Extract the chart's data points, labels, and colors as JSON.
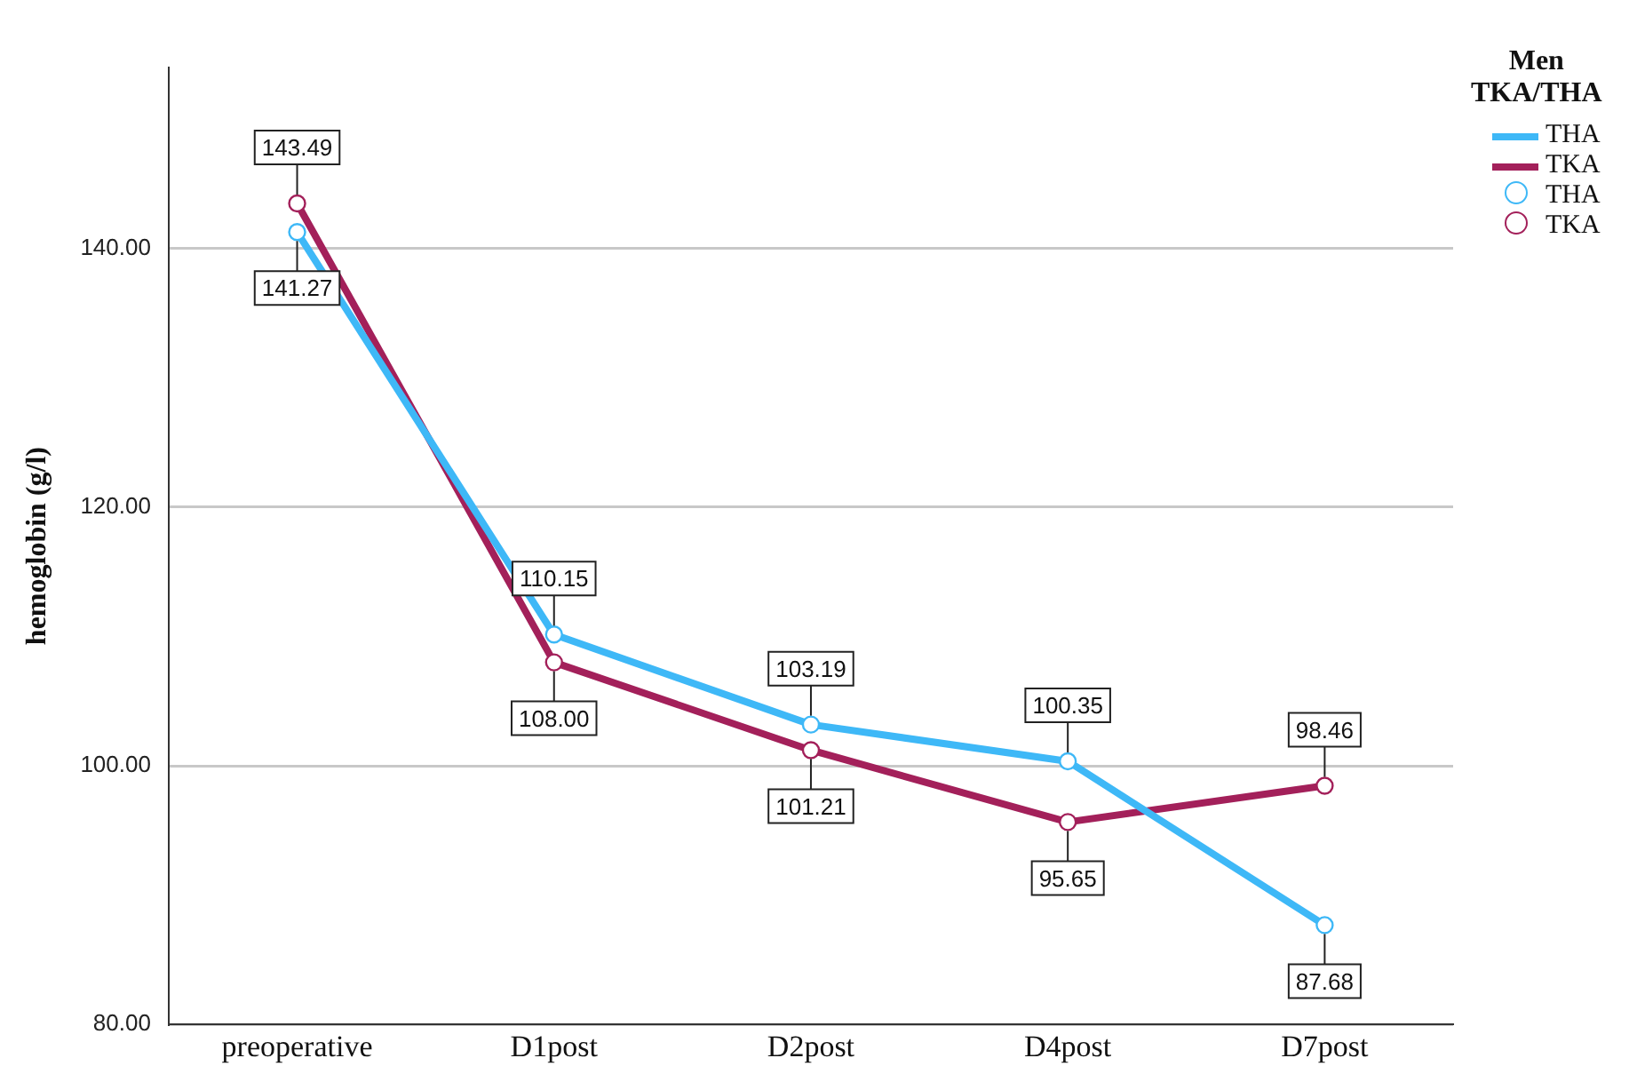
{
  "chart_data": {
    "type": "line",
    "ylabel": "hemoglobin (g/l)",
    "legend_title": "Men TKA/THA",
    "legend": "right",
    "grid": "y",
    "marker": "circle",
    "categories": [
      "preoperative",
      "D1post",
      "D2post",
      "D4post",
      "D7post"
    ],
    "series": [
      {
        "name": "THA",
        "color": "#3eb8f7",
        "values": [
          141.27,
          110.15,
          103.19,
          100.35,
          87.68
        ],
        "value_labels": [
          "141.27",
          "110.15",
          "103.19",
          "100.35",
          "87.68"
        ]
      },
      {
        "name": "TKA",
        "color": "#a3205a",
        "values": [
          143.49,
          108.0,
          101.21,
          95.65,
          98.46
        ],
        "value_labels": [
          "143.49",
          "108.00",
          "101.21",
          "95.65",
          "98.46"
        ]
      }
    ],
    "ylim": [
      80,
      154
    ],
    "yticks": [
      {
        "value": 80,
        "label": "80.00"
      },
      {
        "value": 100,
        "label": "100.00"
      },
      {
        "value": 120,
        "label": "120.00"
      },
      {
        "value": 140,
        "label": "140.00"
      }
    ]
  }
}
